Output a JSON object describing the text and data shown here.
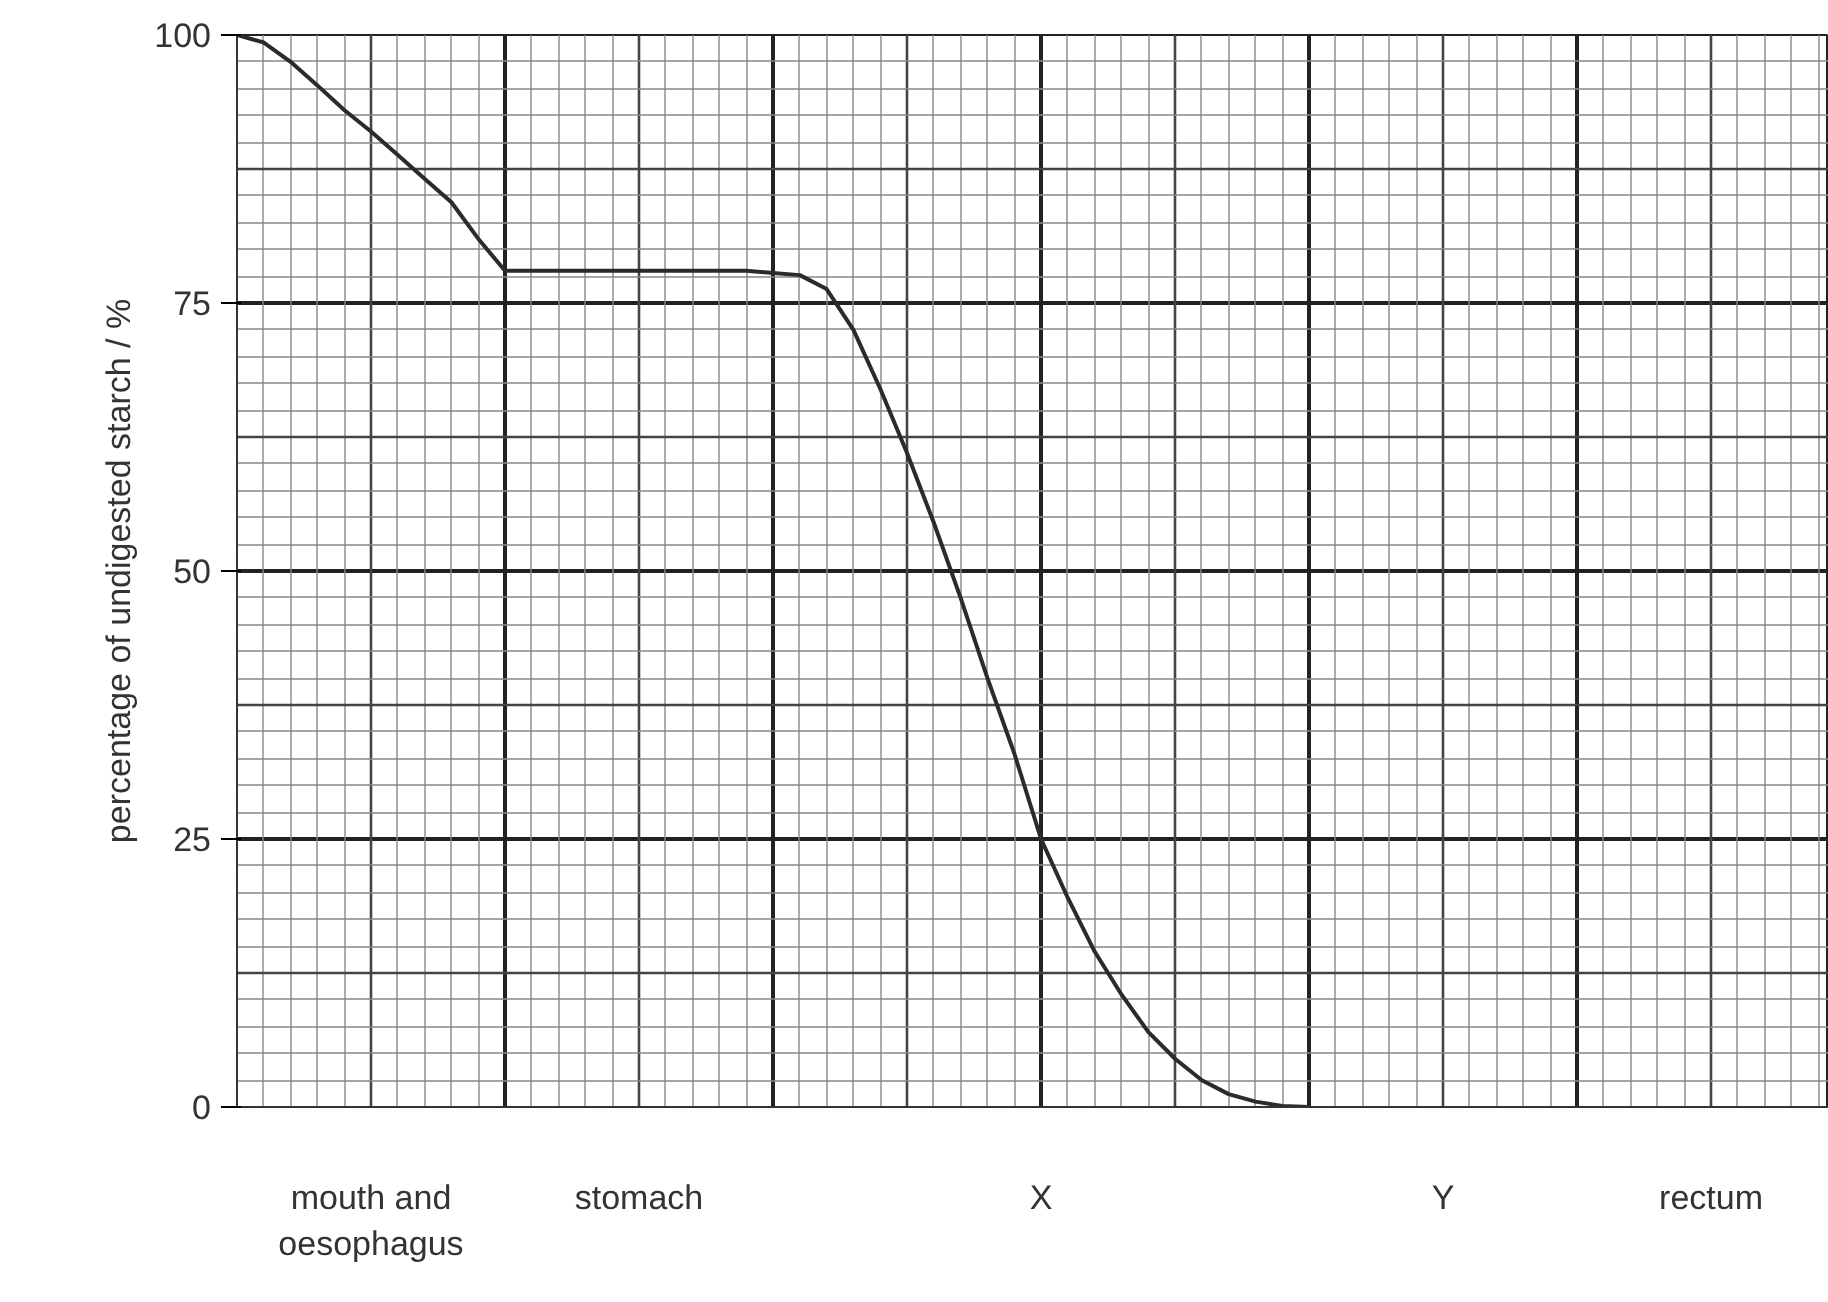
{
  "chart_data": {
    "type": "line",
    "ylabel": "percentage of undigested starch / %",
    "categories": [
      null,
      null,
      null,
      null,
      null,
      "mouth and\noesophagus",
      null,
      null,
      null,
      null,
      null,
      null,
      null,
      null,
      null,
      "stomach",
      null,
      null,
      null,
      null,
      null,
      null,
      null,
      null,
      null,
      null,
      null,
      null,
      null,
      null,
      "X",
      null,
      null,
      null,
      null,
      null,
      null,
      null,
      null,
      null,
      null,
      null,
      null,
      null,
      null,
      "Y",
      null,
      null,
      null,
      null,
      null,
      null,
      null,
      null,
      null,
      "rectum",
      null,
      null,
      null,
      null
    ],
    "series": [
      {
        "color": "#2b2b2b",
        "values": [
          100,
          99.3,
          97.5,
          95.3,
          93,
          91,
          88.8,
          86.6,
          84.4,
          81,
          78,
          78,
          78,
          78,
          78,
          78,
          78,
          78,
          78,
          78,
          77.8,
          77.6,
          76.3,
          72.5,
          67,
          61,
          54.5,
          47.5,
          40,
          33,
          25,
          19.5,
          14.5,
          10.5,
          7,
          4.5,
          2.5,
          1.2,
          0.5,
          0.1,
          0,
          null,
          null,
          null,
          null,
          null,
          null,
          null,
          null,
          null,
          null,
          null,
          null,
          null,
          null,
          null,
          null,
          null,
          null,
          null
        ]
      }
    ],
    "ylim": [
      0,
      100
    ],
    "yticks": [
      0,
      25,
      50,
      75,
      100
    ],
    "grid": true,
    "marker": "none",
    "line_style": "solid"
  }
}
